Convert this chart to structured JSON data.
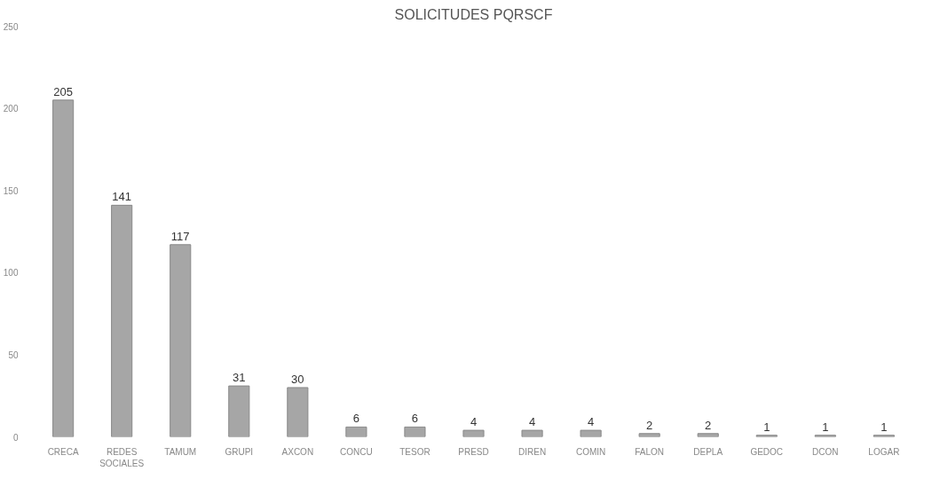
{
  "chart_data": {
    "type": "bar",
    "title": "SOLICITUDES PQRSCF",
    "categories": [
      "CRECA",
      "REDES\nSOCIALES",
      "TAMUM",
      "GRUPI",
      "AXCON",
      "CONCU",
      "TESOR",
      "PRESD",
      "DIREN",
      "COMIN",
      "FALON",
      "DEPLA",
      "GEDOC",
      "DCON",
      "LOGAR"
    ],
    "values": [
      205,
      141,
      117,
      31,
      30,
      6,
      6,
      4,
      4,
      4,
      2,
      2,
      1,
      1,
      1
    ],
    "color": "#a6a6a6",
    "ylim": [
      0,
      250
    ],
    "yticks": [
      0,
      50,
      100,
      150,
      200,
      250
    ],
    "data_labels": true,
    "grid": false
  }
}
